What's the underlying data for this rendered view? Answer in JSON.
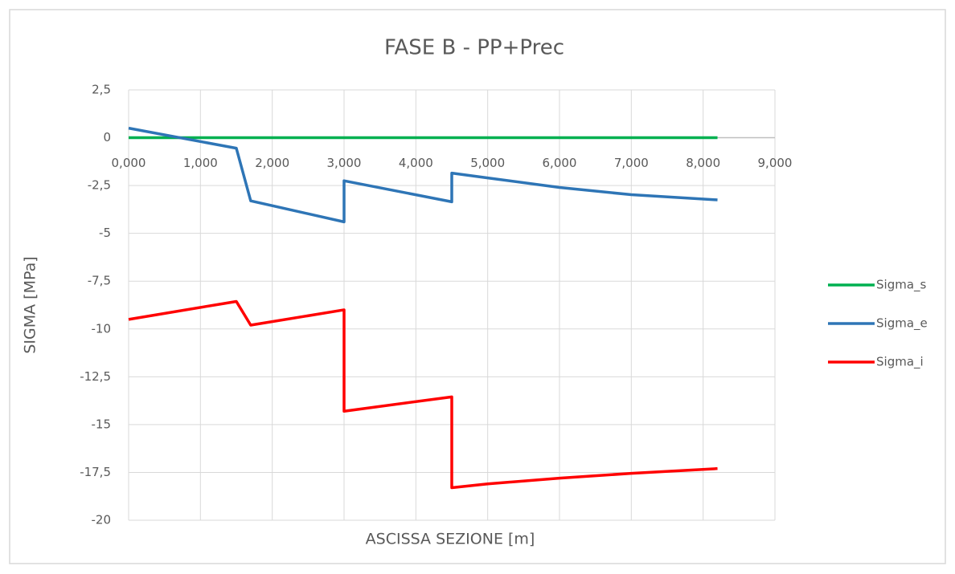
{
  "chart_data": {
    "type": "line",
    "title": "FASE B - PP+Prec",
    "xlabel": "ASCISSA SEZIONE [m]",
    "ylabel": "SIGMA [MPa]",
    "x": [
      0,
      1500,
      1700,
      3000,
      3000,
      4500,
      4500,
      5000,
      6000,
      7000,
      8200
    ],
    "series": [
      {
        "name": "Sigma_s",
        "color": "#00b050",
        "values": [
          0,
          0,
          0,
          0,
          0,
          0,
          0,
          0,
          0,
          0,
          0
        ]
      },
      {
        "name": "Sigma_e",
        "color": "#2e75b6",
        "values": [
          0.5,
          -0.55,
          -3.3,
          -4.4,
          -2.25,
          -3.35,
          -1.85,
          -2.1,
          -2.6,
          -2.98,
          -3.25
        ]
      },
      {
        "name": "Sigma_i",
        "color": "#ff0000",
        "values": [
          -9.5,
          -8.56,
          -9.8,
          -9.0,
          -14.3,
          -13.55,
          -18.3,
          -18.1,
          -17.8,
          -17.55,
          -17.3
        ]
      }
    ],
    "xlim": [
      0,
      9000
    ],
    "xticks": [
      {
        "value": 0,
        "label": "0,000"
      },
      {
        "value": 1000,
        "label": "1,000"
      },
      {
        "value": 2000,
        "label": "2,000"
      },
      {
        "value": 3000,
        "label": "3,000"
      },
      {
        "value": 4000,
        "label": "4,000"
      },
      {
        "value": 5000,
        "label": "5,000"
      },
      {
        "value": 6000,
        "label": "6,000"
      },
      {
        "value": 7000,
        "label": "7,000"
      },
      {
        "value": 8000,
        "label": "8,000"
      },
      {
        "value": 9000,
        "label": "9,000"
      }
    ],
    "ylim": [
      -20,
      2.5
    ],
    "yticks": [
      {
        "value": 2.5,
        "label": "2,5"
      },
      0,
      {
        "value": -2.5,
        "label": "-2,5"
      },
      -5,
      {
        "value": -7.5,
        "label": "-7,5"
      },
      -10,
      {
        "value": -12.5,
        "label": "-12,5"
      },
      -15,
      {
        "value": -17.5,
        "label": "-17,5"
      },
      -20
    ],
    "grid": true,
    "legend": "right"
  }
}
